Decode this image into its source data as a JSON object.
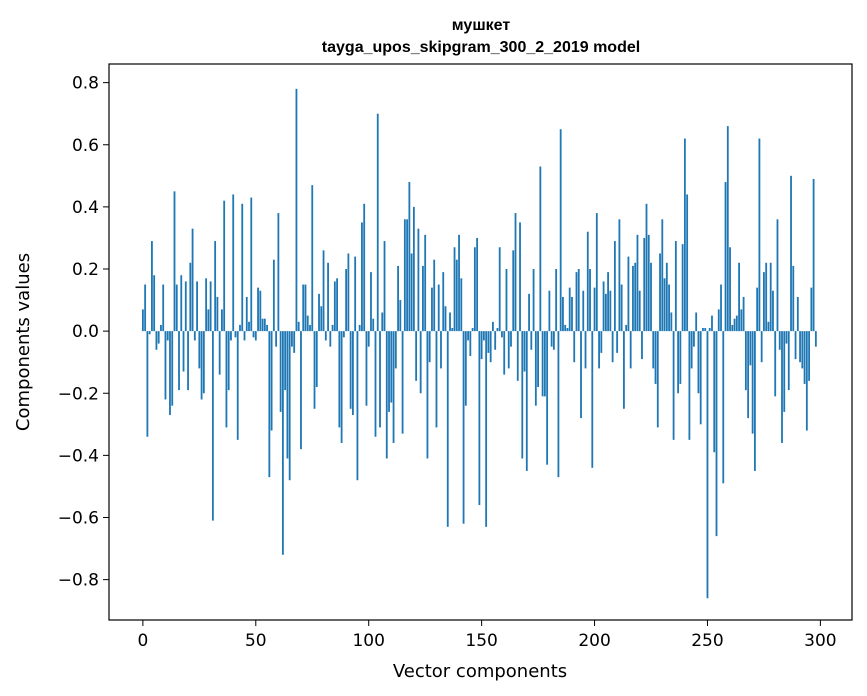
{
  "chart_data": {
    "type": "bar",
    "title": "мушкет",
    "subtitle": "tayga_upos_skipgram_300_2_2019 model",
    "xlabel": "Vector components",
    "ylabel": "Components values",
    "xlim": [
      -15,
      314
    ],
    "ylim": [
      -0.93,
      0.86
    ],
    "xticks": [
      0,
      50,
      100,
      150,
      200,
      250,
      300
    ],
    "yticks": [
      -0.8,
      -0.6,
      -0.4,
      -0.2,
      0.0,
      0.2,
      0.4,
      0.6,
      0.8
    ],
    "xtick_labels": [
      "0",
      "50",
      "100",
      "150",
      "200",
      "250",
      "300"
    ],
    "ytick_labels": [
      "−0.8",
      "−0.6",
      "−0.4",
      "−0.2",
      "0.0",
      "0.2",
      "0.4",
      "0.6",
      "0.8"
    ],
    "bar_color": "#1f77b4",
    "values": [
      0.07,
      0.15,
      -0.34,
      -0.01,
      0.29,
      0.18,
      -0.06,
      -0.04,
      0.02,
      0.15,
      -0.22,
      -0.03,
      -0.27,
      -0.24,
      0.45,
      0.15,
      -0.19,
      0.18,
      -0.13,
      0.16,
      -0.19,
      0.22,
      0.33,
      -0.03,
      0.16,
      -0.12,
      -0.22,
      -0.2,
      0.17,
      0.07,
      0.16,
      -0.61,
      0.29,
      0.11,
      -0.14,
      0.07,
      0.42,
      -0.31,
      -0.19,
      -0.03,
      0.44,
      -0.02,
      -0.35,
      0.02,
      0.41,
      -0.03,
      0.11,
      0.03,
      0.43,
      -0.02,
      -0.03,
      0.14,
      0.13,
      0.04,
      0.04,
      0.02,
      -0.47,
      -0.32,
      0.23,
      -0.05,
      0.38,
      -0.26,
      -0.72,
      -0.19,
      -0.41,
      -0.48,
      -0.05,
      -0.07,
      0.78,
      0.03,
      -0.38,
      0.15,
      0.15,
      0.05,
      0.02,
      0.47,
      -0.25,
      -0.18,
      0.12,
      0.08,
      0.26,
      -0.03,
      0.22,
      -0.05,
      0.02,
      0.16,
      0.17,
      -0.31,
      -0.36,
      -0.02,
      0.2,
      0.25,
      -0.25,
      -0.27,
      0.24,
      -0.48,
      0.02,
      0.35,
      0.41,
      -0.24,
      -0.05,
      0.19,
      0.04,
      -0.34,
      0.7,
      -0.31,
      0.06,
      0.29,
      -0.41,
      -0.26,
      -0.23,
      -0.36,
      -0.12,
      0.21,
      0.1,
      -0.33,
      0.36,
      0.36,
      0.48,
      0.25,
      0.4,
      -0.16,
      0.33,
      -0.2,
      0.21,
      0.31,
      -0.41,
      -0.1,
      0.14,
      0.23,
      -0.31,
      0.15,
      -0.12,
      0.19,
      0.08,
      -0.63,
      0.06,
      0.01,
      0.27,
      0.23,
      0.31,
      0.17,
      -0.62,
      -0.24,
      -0.03,
      -0.08,
      0.01,
      0.27,
      0.3,
      -0.56,
      -0.09,
      -0.03,
      -0.63,
      -0.07,
      -0.1,
      0.03,
      -0.06,
      0.01,
      0.27,
      -0.02,
      -0.14,
      0.2,
      -0.12,
      -0.05,
      0.26,
      0.38,
      -0.16,
      0.35,
      -0.41,
      -0.13,
      -0.45,
      0.12,
      -0.06,
      0.2,
      -0.24,
      -0.18,
      0.53,
      -0.21,
      -0.21,
      -0.43,
      0.13,
      -0.05,
      -0.06,
      0.2,
      -0.47,
      0.65,
      0.11,
      0.02,
      0.01,
      0.14,
      0.11,
      -0.1,
      0.19,
      0.2,
      -0.28,
      0.13,
      -0.12,
      0.32,
      0.2,
      -0.44,
      0.14,
      0.38,
      -0.12,
      -0.07,
      0.16,
      0.12,
      0.19,
      0.13,
      -0.1,
      0.29,
      -0.07,
      0.36,
      0.15,
      -0.25,
      0.02,
      0.24,
      -0.12,
      0.21,
      0.22,
      0.31,
      0.13,
      -0.09,
      0.3,
      0.41,
      0.31,
      0.22,
      -0.12,
      -0.17,
      -0.31,
      0.25,
      0.36,
      0.17,
      0.22,
      0.15,
      0.06,
      -0.35,
      0.29,
      -0.2,
      -0.17,
      0.28,
      0.62,
      0.44,
      -0.35,
      -0.12,
      -0.05,
      0.06,
      -0.2,
      -0.3,
      0.01,
      0.01,
      -0.86,
      0.01,
      0.05,
      -0.39,
      -0.66,
      0.07,
      0.15,
      -0.49,
      0.48,
      0.66,
      0.27,
      0.02,
      0.04,
      0.05,
      0.22,
      0.07,
      0.11,
      -0.19,
      -0.28,
      -0.11,
      -0.33,
      -0.45,
      0.14,
      0.62,
      -0.1,
      0.19,
      0.22,
      0.03,
      0.22,
      0.13,
      -0.21,
      0.36,
      -0.06,
      -0.36,
      -0.26,
      -0.04,
      -0.19,
      0.5,
      0.21,
      -0.09,
      0.11,
      -0.1,
      -0.12,
      -0.17,
      -0.32,
      -0.16,
      0.14,
      0.49,
      -0.05
    ]
  }
}
